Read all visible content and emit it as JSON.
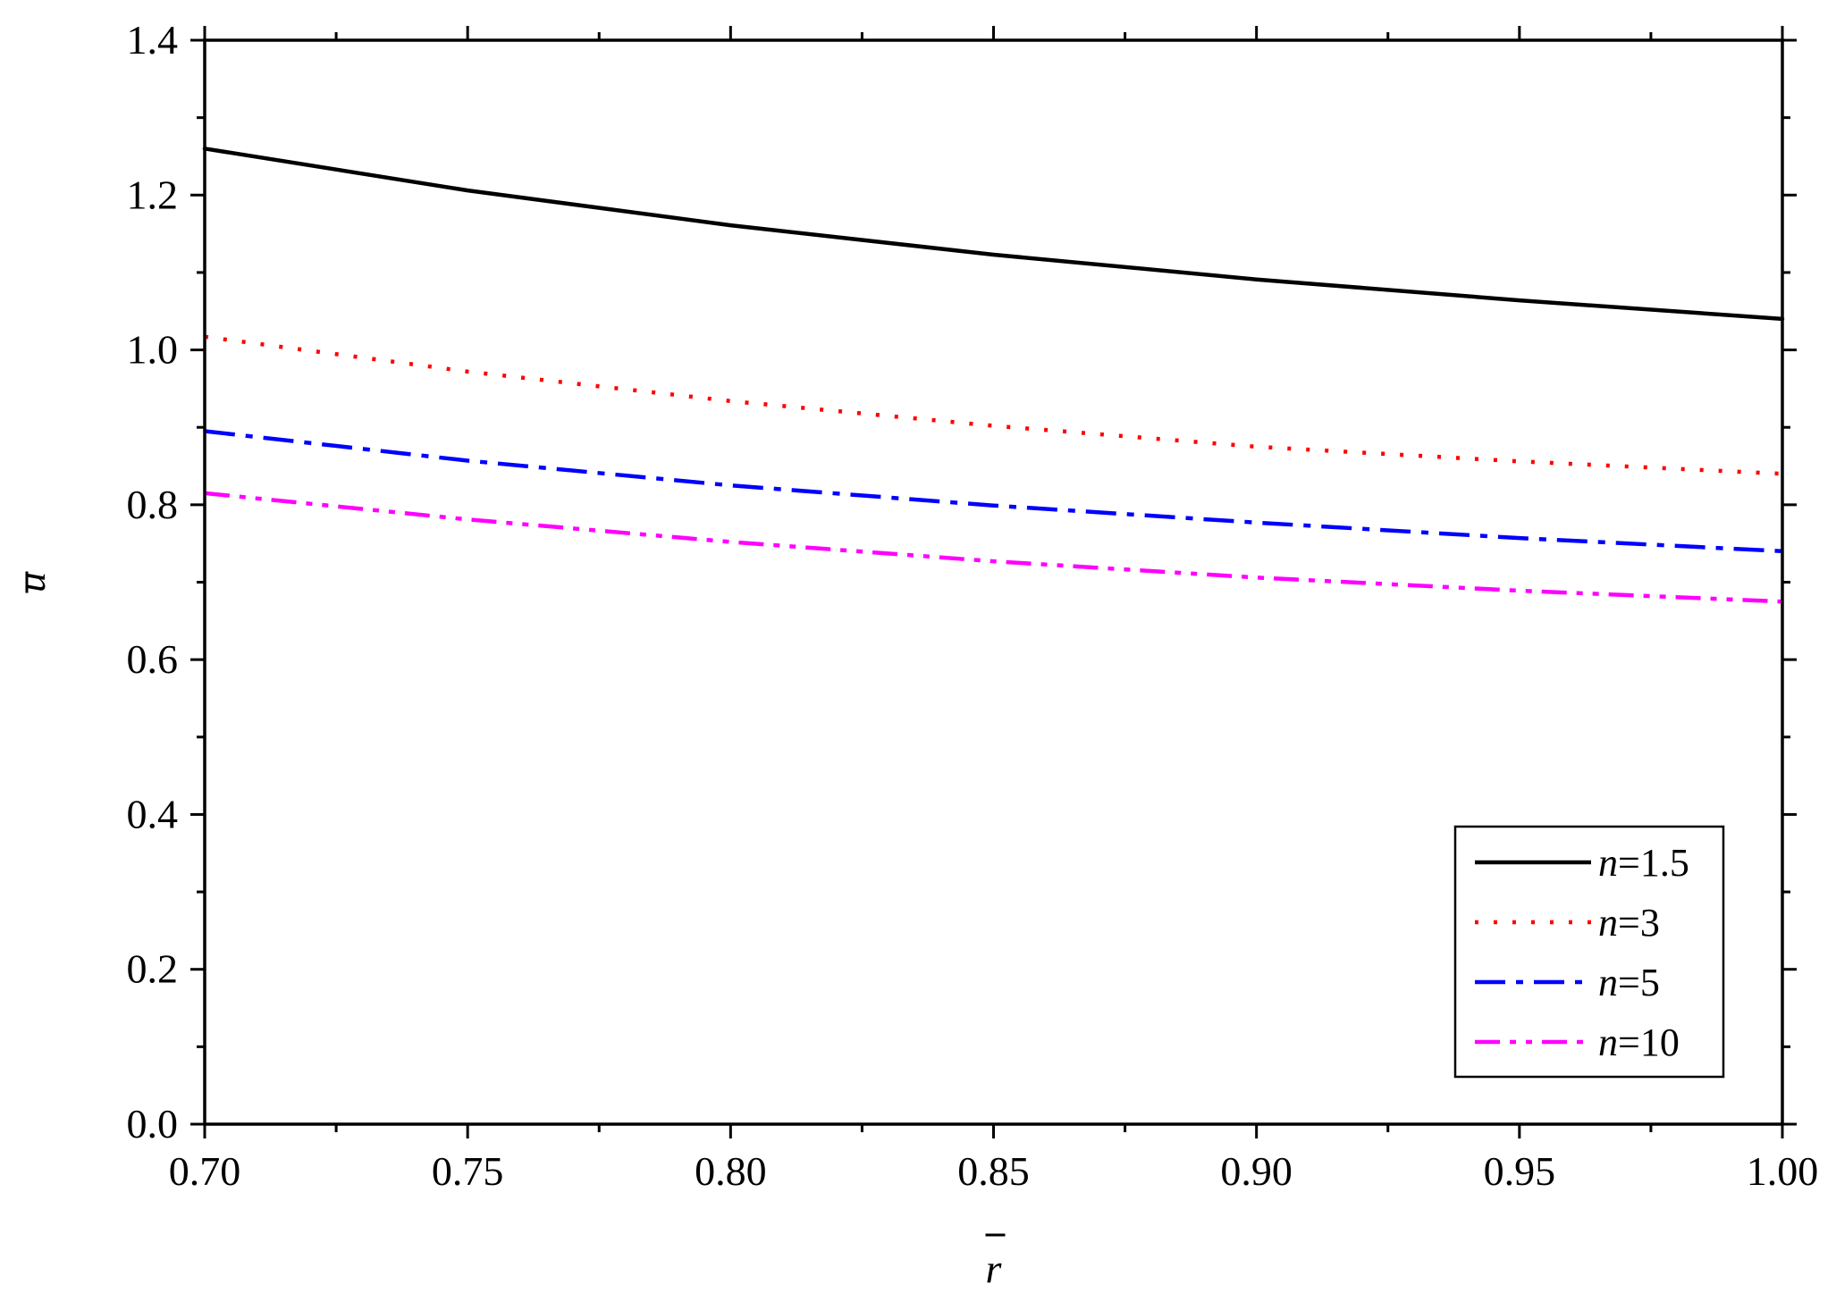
{
  "chart_data": {
    "type": "line",
    "title": "",
    "xlabel": "r",
    "ylabel": "u",
    "xlim": [
      0.7,
      1.0
    ],
    "ylim": [
      0.0,
      1.4
    ],
    "xticks": [
      "0.70",
      "0.75",
      "0.80",
      "0.85",
      "0.90",
      "0.95",
      "1.00"
    ],
    "yticks": [
      "0.0",
      "0.2",
      "0.4",
      "0.6",
      "0.8",
      "1.0",
      "1.2",
      "1.4"
    ],
    "grid": false,
    "legend_position": "bottom-right",
    "x": [
      0.7,
      0.75,
      0.8,
      0.85,
      0.9,
      0.95,
      1.0
    ],
    "series": [
      {
        "var": "n",
        "eq": "=1.5",
        "color": "#000000",
        "dash": "solid",
        "values": [
          1.26,
          1.206,
          1.161,
          1.123,
          1.091,
          1.064,
          1.04
        ]
      },
      {
        "var": "n",
        "eq": "=3",
        "color": "#ff0000",
        "dash": "dot",
        "values": [
          1.017,
          0.972,
          0.934,
          0.902,
          0.875,
          0.856,
          0.84
        ]
      },
      {
        "var": "n",
        "eq": "=5",
        "color": "#0000ff",
        "dash": "dash-dot",
        "values": [
          0.895,
          0.857,
          0.825,
          0.799,
          0.777,
          0.757,
          0.74
        ]
      },
      {
        "var": "n",
        "eq": "=10",
        "color": "#ff00ff",
        "dash": "dash-dot-dot",
        "values": [
          0.815,
          0.781,
          0.752,
          0.727,
          0.706,
          0.689,
          0.675
        ]
      }
    ]
  }
}
